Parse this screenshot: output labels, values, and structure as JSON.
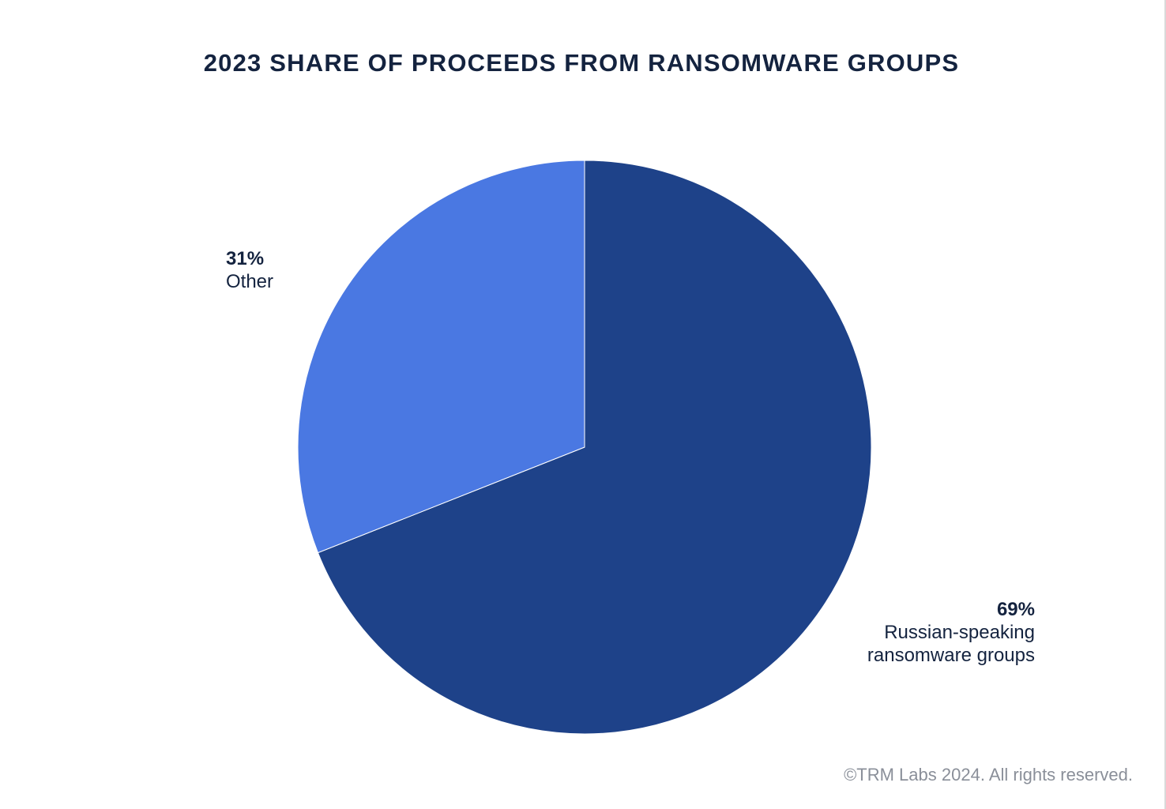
{
  "chart_data": {
    "type": "pie",
    "title": "2023 SHARE OF PROCEEDS FROM RANSOMWARE GROUPS",
    "slices": [
      {
        "label": "Russian-speaking ransomware groups",
        "label_lines": [
          "Russian-speaking",
          "ransomware groups"
        ],
        "value": 69,
        "display": "69%",
        "color": "#1e4289"
      },
      {
        "label": "Other",
        "label_lines": [
          "Other"
        ],
        "value": 31,
        "display": "31%",
        "color": "#4a78e2"
      }
    ],
    "start_angle": "12 o'clock",
    "direction": "clockwise"
  },
  "footer": {
    "copyright": "©TRM Labs 2024. All rights reserved."
  }
}
